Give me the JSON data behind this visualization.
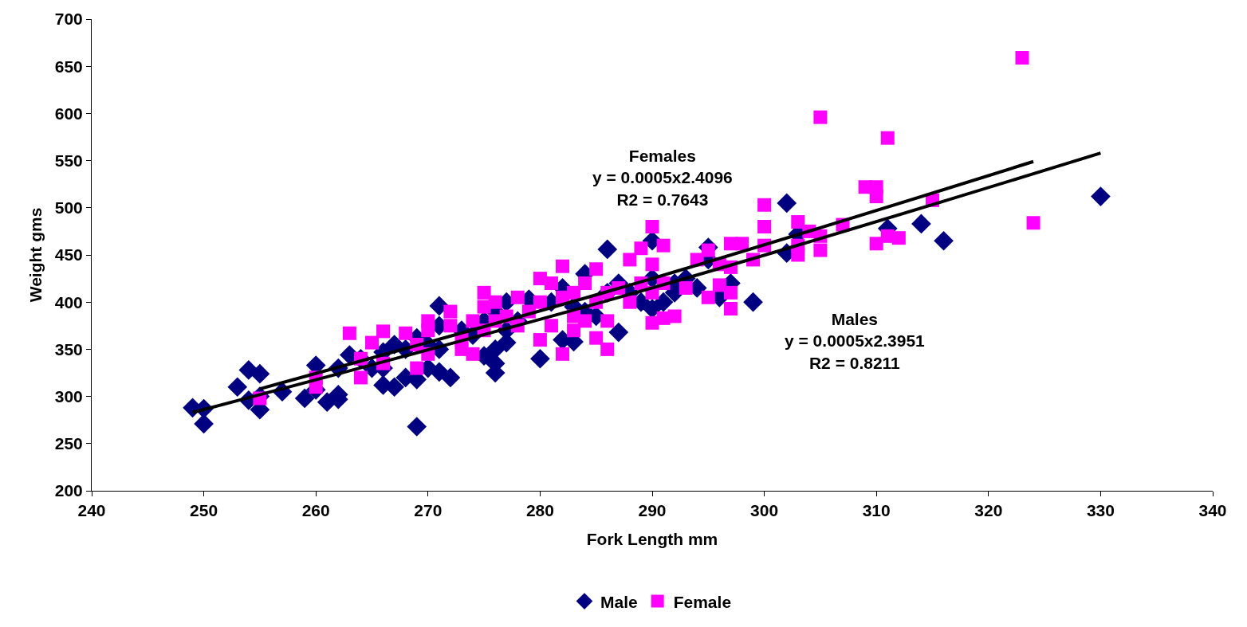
{
  "chart_data": {
    "type": "scatter",
    "xlabel": "Fork Length mm",
    "ylabel": "Weight gms",
    "xlim": [
      240,
      340
    ],
    "xticks": [
      240,
      250,
      260,
      270,
      280,
      290,
      300,
      310,
      320,
      330,
      340
    ],
    "ylim": [
      200,
      700
    ],
    "yticks": [
      200,
      250,
      300,
      350,
      400,
      450,
      500,
      550,
      600,
      650,
      700
    ],
    "legend": "bottom",
    "annotations": [
      "Females\ny = 0.0005x2.4096\nR2 = 0.7643",
      "Males\ny = 0.0005x2.3951\nR2 = 0.8211"
    ],
    "series": [
      {
        "name": "Male",
        "color": "#000080",
        "marker": "diamond",
        "x": [
          249,
          250,
          250,
          253,
          254,
          254,
          255,
          255,
          255,
          257,
          259,
          260,
          260,
          261,
          262,
          262,
          262,
          263,
          264,
          265,
          266,
          266,
          266,
          267,
          267,
          268,
          268,
          269,
          269,
          269,
          270,
          270,
          271,
          271,
          271,
          271,
          272,
          273,
          274,
          275,
          275,
          276,
          276,
          276,
          276,
          277,
          277,
          277,
          278,
          279,
          280,
          281,
          282,
          282,
          283,
          283,
          284,
          284,
          285,
          286,
          286,
          287,
          287,
          288,
          289,
          290,
          290,
          290,
          291,
          292,
          292,
          293,
          294,
          295,
          295,
          296,
          297,
          299,
          302,
          302,
          303,
          311,
          314,
          316,
          330
        ],
        "values": [
          288,
          287,
          271,
          310,
          328,
          296,
          324,
          286,
          300,
          305,
          298,
          333,
          307,
          294,
          330,
          302,
          297,
          344,
          340,
          330,
          347,
          312,
          330,
          355,
          310,
          320,
          350,
          268,
          318,
          362,
          330,
          355,
          396,
          375,
          326,
          350,
          320,
          370,
          365,
          343,
          380,
          325,
          335,
          350,
          390,
          357,
          400,
          370,
          380,
          403,
          340,
          400,
          415,
          360,
          358,
          395,
          430,
          390,
          385,
          456,
          410,
          368,
          420,
          410,
          400,
          465,
          393,
          425,
          400,
          410,
          420,
          425,
          415,
          458,
          445,
          405,
          420,
          400,
          505,
          452,
          472,
          478,
          483,
          465,
          512
        ]
      },
      {
        "name": "Female",
        "color": "#ff00ff",
        "marker": "square",
        "x": [
          255,
          260,
          260,
          263,
          264,
          264,
          265,
          266,
          266,
          268,
          269,
          269,
          270,
          270,
          270,
          272,
          272,
          273,
          273,
          274,
          274,
          275,
          275,
          275,
          276,
          276,
          277,
          278,
          278,
          279,
          280,
          280,
          280,
          281,
          281,
          282,
          282,
          282,
          283,
          283,
          283,
          284,
          284,
          285,
          285,
          285,
          286,
          286,
          286,
          287,
          288,
          288,
          289,
          289,
          290,
          290,
          290,
          290,
          291,
          291,
          291,
          292,
          293,
          294,
          295,
          295,
          296,
          296,
          297,
          297,
          297,
          297,
          298,
          299,
          300,
          300,
          300,
          303,
          303,
          303,
          304,
          305,
          305,
          305,
          307,
          309,
          310,
          310,
          310,
          311,
          311,
          312,
          315,
          323,
          324
        ],
        "values": [
          298,
          320,
          310,
          367,
          320,
          340,
          357,
          369,
          335,
          367,
          330,
          355,
          380,
          345,
          370,
          390,
          375,
          360,
          350,
          380,
          345,
          410,
          395,
          370,
          400,
          380,
          385,
          405,
          375,
          390,
          425,
          400,
          360,
          420,
          375,
          438,
          345,
          405,
          410,
          385,
          370,
          420,
          380,
          435,
          400,
          362,
          410,
          380,
          350,
          415,
          445,
          400,
          457,
          420,
          480,
          440,
          378,
          410,
          460,
          420,
          383,
          385,
          415,
          445,
          455,
          405,
          440,
          418,
          462,
          437,
          410,
          393,
          462,
          445,
          503,
          480,
          460,
          485,
          460,
          450,
          475,
          596,
          470,
          455,
          482,
          522,
          522,
          512,
          462,
          574,
          470,
          468,
          508,
          659,
          484
        ]
      },
      {
        "type": "line",
        "color": "#000000",
        "marker": "none",
        "line_style": "solid",
        "x": [
          255,
          290,
          324
        ],
        "values": [
          308,
          425,
          549
        ]
      },
      {
        "type": "line",
        "color": "#000000",
        "marker": "none",
        "line_style": "solid",
        "x": [
          249,
          290,
          330
        ],
        "values": [
          283,
          415,
          558
        ]
      }
    ]
  }
}
